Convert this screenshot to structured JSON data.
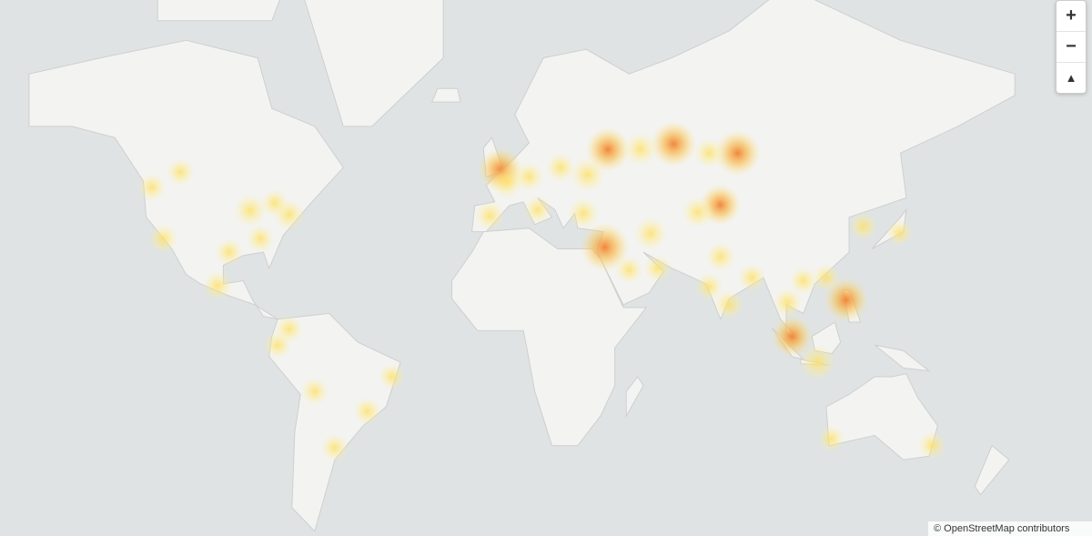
{
  "map": {
    "colors": {
      "ocean": "#dfe3e3",
      "land": "#f3f3f1",
      "border": "#cfcfcf",
      "heat_low": "#ffe97a",
      "heat_high": "#f07a2a"
    },
    "hotspots": [
      {
        "lon": 0,
        "lat": 51.5,
        "w": 0.8
      },
      {
        "lon": 2.3,
        "lat": 48.8,
        "w": 0.45
      },
      {
        "lon": -3.7,
        "lat": 40.4,
        "w": 0.35
      },
      {
        "lon": 10,
        "lat": 50,
        "w": 0.35
      },
      {
        "lon": 13,
        "lat": 42,
        "w": 0.3
      },
      {
        "lon": 21,
        "lat": 52,
        "w": 0.35
      },
      {
        "lon": 30.5,
        "lat": 50.4,
        "w": 0.5
      },
      {
        "lon": 37.6,
        "lat": 55.7,
        "w": 0.8
      },
      {
        "lon": 60.6,
        "lat": 56.8,
        "w": 0.85
      },
      {
        "lon": 49,
        "lat": 55.8,
        "w": 0.45
      },
      {
        "lon": 83,
        "lat": 55,
        "w": 0.85
      },
      {
        "lon": 73,
        "lat": 55,
        "w": 0.35
      },
      {
        "lon": 76.9,
        "lat": 43.2,
        "w": 0.7
      },
      {
        "lon": 69,
        "lat": 41.3,
        "w": 0.4
      },
      {
        "lon": 36.5,
        "lat": 31.5,
        "w": 0.95
      },
      {
        "lon": 29,
        "lat": 41,
        "w": 0.4
      },
      {
        "lon": 52.5,
        "lat": 35.5,
        "w": 0.45
      },
      {
        "lon": 45,
        "lat": 24.5,
        "w": 0.3
      },
      {
        "lon": 55,
        "lat": 25,
        "w": 0.3
      },
      {
        "lon": 77,
        "lat": 28.6,
        "w": 0.35
      },
      {
        "lon": 73,
        "lat": 19,
        "w": 0.3
      },
      {
        "lon": 80,
        "lat": 13,
        "w": 0.35
      },
      {
        "lon": 88,
        "lat": 22,
        "w": 0.3
      },
      {
        "lon": 100.5,
        "lat": 13.7,
        "w": 0.35
      },
      {
        "lon": 106,
        "lat": 21,
        "w": 0.3
      },
      {
        "lon": 121,
        "lat": 14.6,
        "w": 0.8
      },
      {
        "lon": 102,
        "lat": 2,
        "w": 0.7
      },
      {
        "lon": 111,
        "lat": -7,
        "w": 0.55
      },
      {
        "lon": 114,
        "lat": 22,
        "w": 0.3
      },
      {
        "lon": 127,
        "lat": 37.5,
        "w": 0.3
      },
      {
        "lon": 139.7,
        "lat": 35.7,
        "w": 0.25
      },
      {
        "lon": 151,
        "lat": -33.9,
        "w": 0.3
      },
      {
        "lon": 115.8,
        "lat": -32,
        "w": 0.25
      },
      {
        "lon": -74,
        "lat": 40.7,
        "w": 0.4
      },
      {
        "lon": -87.6,
        "lat": 41.8,
        "w": 0.45
      },
      {
        "lon": -84,
        "lat": 34,
        "w": 0.3
      },
      {
        "lon": -95,
        "lat": 30,
        "w": 0.3
      },
      {
        "lon": -118,
        "lat": 34,
        "w": 0.35
      },
      {
        "lon": -122,
        "lat": 47.5,
        "w": 0.3
      },
      {
        "lon": -79,
        "lat": 43.7,
        "w": 0.3
      },
      {
        "lon": -99,
        "lat": 19.4,
        "w": 0.35
      },
      {
        "lon": -74,
        "lat": 4.6,
        "w": 0.3
      },
      {
        "lon": -78,
        "lat": -1,
        "w": 0.3
      },
      {
        "lon": -58,
        "lat": -34.6,
        "w": 0.3
      },
      {
        "lon": -46.6,
        "lat": -23.5,
        "w": 0.3
      },
      {
        "lon": -65,
        "lat": -17,
        "w": 0.3
      },
      {
        "lon": -38,
        "lat": -12,
        "w": 0.25
      },
      {
        "lon": -112,
        "lat": 51,
        "w": 0.3
      }
    ]
  },
  "controls": {
    "zoom_in": "+",
    "zoom_out": "−",
    "reset_north": "▲"
  },
  "attribution": "© OpenStreetMap contributors"
}
